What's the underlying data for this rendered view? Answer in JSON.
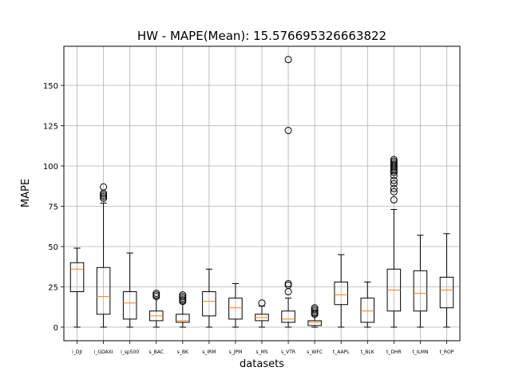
{
  "chart_data": {
    "type": "box",
    "title": "HW - MAPE(Mean): 15.576695326663822",
    "xlabel": "datasets",
    "ylabel": "MAPE",
    "ylim": [
      -8,
      175
    ],
    "yticks": [
      0,
      25,
      50,
      75,
      100,
      125,
      150
    ],
    "grid": true,
    "colors": {
      "box": "#000000",
      "median": "#ff7f0e",
      "grid": "#b0b0b0"
    },
    "categories": [
      "i_DJI",
      "i_GDAXI",
      "i_sp500",
      "s_BAC",
      "s_BK",
      "s_IRM",
      "s_JPM",
      "s_MS",
      "s_VTR",
      "s_WFC",
      "t_AAPL",
      "t_BLK",
      "t_DHR",
      "t_ILMN",
      "t_ROP"
    ],
    "boxes": [
      {
        "whislo": 0,
        "q1": 22,
        "med": 36,
        "q3": 40,
        "whishi": 49,
        "fliers": []
      },
      {
        "whislo": 0,
        "q1": 8,
        "med": 19,
        "q3": 37,
        "whishi": 77,
        "fliers": [
          80,
          81,
          82,
          83,
          87
        ]
      },
      {
        "whislo": 0,
        "q1": 5,
        "med": 15,
        "q3": 22,
        "whishi": 46,
        "fliers": []
      },
      {
        "whislo": 0,
        "q1": 4,
        "med": 7,
        "q3": 10,
        "whishi": 18,
        "fliers": [
          19,
          20,
          21
        ]
      },
      {
        "whislo": 0,
        "q1": 3,
        "med": 4,
        "q3": 8,
        "whishi": 15,
        "fliers": [
          16,
          17,
          18,
          19,
          20
        ]
      },
      {
        "whislo": 0,
        "q1": 7,
        "med": 16,
        "q3": 22,
        "whishi": 36,
        "fliers": []
      },
      {
        "whislo": 0,
        "q1": 5,
        "med": 12,
        "q3": 18,
        "whishi": 27,
        "fliers": []
      },
      {
        "whislo": 0,
        "q1": 4,
        "med": 6,
        "q3": 8,
        "whishi": 13,
        "fliers": [
          15
        ]
      },
      {
        "whislo": 0,
        "q1": 3,
        "med": 5,
        "q3": 10,
        "whishi": 18,
        "fliers": [
          22,
          26,
          27,
          122,
          166
        ]
      },
      {
        "whislo": 0,
        "q1": 1,
        "med": 3,
        "q3": 4,
        "whishi": 7,
        "fliers": [
          8,
          9,
          10,
          11,
          12
        ]
      },
      {
        "whislo": 0,
        "q1": 14,
        "med": 20,
        "q3": 28,
        "whishi": 45,
        "fliers": []
      },
      {
        "whislo": 0,
        "q1": 3,
        "med": 10,
        "q3": 18,
        "whishi": 28,
        "fliers": []
      },
      {
        "whislo": 0,
        "q1": 10,
        "med": 23,
        "q3": 36,
        "whishi": 73,
        "fliers": [
          79,
          84,
          86,
          89,
          91,
          94,
          96,
          97,
          98,
          99,
          100,
          101,
          102,
          103,
          104
        ]
      },
      {
        "whislo": 0,
        "q1": 10,
        "med": 21,
        "q3": 35,
        "whishi": 57,
        "fliers": []
      },
      {
        "whislo": 0,
        "q1": 12,
        "med": 23,
        "q3": 31,
        "whishi": 58,
        "fliers": []
      }
    ]
  }
}
